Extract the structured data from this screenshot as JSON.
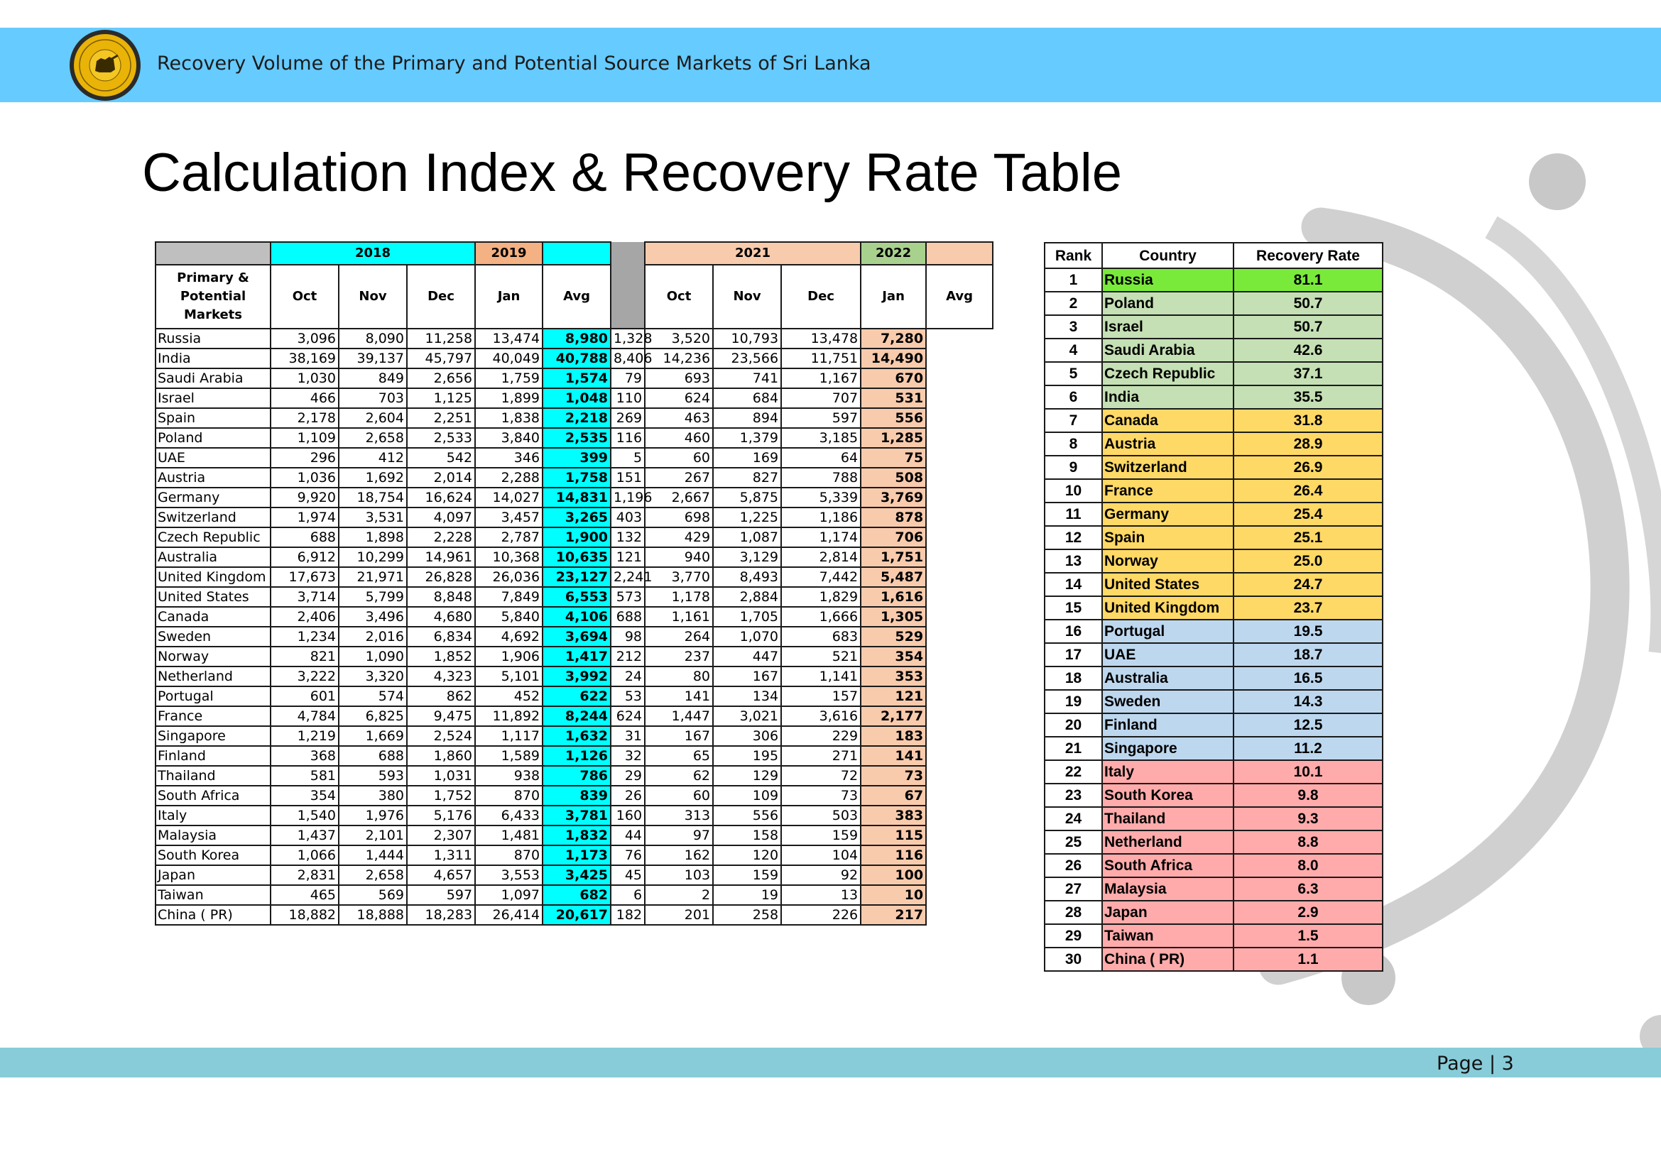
{
  "header": {
    "title": "Recovery Volume of the Primary and Potential Source Markets of Sri Lanka"
  },
  "page_title": "Calculation Index & Recovery Rate Table",
  "footer": {
    "page_label": "Page | 3"
  },
  "colors": {
    "header_band": "#66cbff",
    "footer_band": "#88ccd9",
    "avg_2019": "#00ffff",
    "avg_2022": "#f8cbad",
    "tier_top": "#7aea3a",
    "tier_high": "#c5e0b4",
    "tier_mid": "#ffd966",
    "tier_low": "#bdd7ee",
    "tier_bottom": "#ffabab"
  },
  "main_table": {
    "years": [
      "2018",
      "2019",
      "2021",
      "2022"
    ],
    "market_header": "Primary & Potential Markets",
    "months": [
      "Oct",
      "Nov",
      "Dec",
      "Jan",
      "Avg"
    ],
    "rows": [
      {
        "name": "Russia",
        "a": [
          "3,096",
          "8,090",
          "11,258",
          "13,474",
          "8,980"
        ],
        "b": [
          "1,328",
          "3,520",
          "10,793",
          "13,478",
          "7,280"
        ]
      },
      {
        "name": "India",
        "a": [
          "38,169",
          "39,137",
          "45,797",
          "40,049",
          "40,788"
        ],
        "b": [
          "8,406",
          "14,236",
          "23,566",
          "11,751",
          "14,490"
        ]
      },
      {
        "name": "Saudi Arabia",
        "a": [
          "1,030",
          "849",
          "2,656",
          "1,759",
          "1,574"
        ],
        "b": [
          "79",
          "693",
          "741",
          "1,167",
          "670"
        ]
      },
      {
        "name": "Israel",
        "a": [
          "466",
          "703",
          "1,125",
          "1,899",
          "1,048"
        ],
        "b": [
          "110",
          "624",
          "684",
          "707",
          "531"
        ]
      },
      {
        "name": "Spain",
        "a": [
          "2,178",
          "2,604",
          "2,251",
          "1,838",
          "2,218"
        ],
        "b": [
          "269",
          "463",
          "894",
          "597",
          "556"
        ]
      },
      {
        "name": "Poland",
        "a": [
          "1,109",
          "2,658",
          "2,533",
          "3,840",
          "2,535"
        ],
        "b": [
          "116",
          "460",
          "1,379",
          "3,185",
          "1,285"
        ]
      },
      {
        "name": "UAE",
        "a": [
          "296",
          "412",
          "542",
          "346",
          "399"
        ],
        "b": [
          "5",
          "60",
          "169",
          "64",
          "75"
        ]
      },
      {
        "name": "Austria",
        "a": [
          "1,036",
          "1,692",
          "2,014",
          "2,288",
          "1,758"
        ],
        "b": [
          "151",
          "267",
          "827",
          "788",
          "508"
        ]
      },
      {
        "name": "Germany",
        "a": [
          "9,920",
          "18,754",
          "16,624",
          "14,027",
          "14,831"
        ],
        "b": [
          "1,196",
          "2,667",
          "5,875",
          "5,339",
          "3,769"
        ]
      },
      {
        "name": "Switzerland",
        "a": [
          "1,974",
          "3,531",
          "4,097",
          "3,457",
          "3,265"
        ],
        "b": [
          "403",
          "698",
          "1,225",
          "1,186",
          "878"
        ]
      },
      {
        "name": "Czech Republic",
        "a": [
          "688",
          "1,898",
          "2,228",
          "2,787",
          "1,900"
        ],
        "b": [
          "132",
          "429",
          "1,087",
          "1,174",
          "706"
        ]
      },
      {
        "name": "Australia",
        "a": [
          "6,912",
          "10,299",
          "14,961",
          "10,368",
          "10,635"
        ],
        "b": [
          "121",
          "940",
          "3,129",
          "2,814",
          "1,751"
        ]
      },
      {
        "name": "United Kingdom",
        "a": [
          "17,673",
          "21,971",
          "26,828",
          "26,036",
          "23,127"
        ],
        "b": [
          "2,241",
          "3,770",
          "8,493",
          "7,442",
          "5,487"
        ]
      },
      {
        "name": "United States",
        "a": [
          "3,714",
          "5,799",
          "8,848",
          "7,849",
          "6,553"
        ],
        "b": [
          "573",
          "1,178",
          "2,884",
          "1,829",
          "1,616"
        ]
      },
      {
        "name": "Canada",
        "a": [
          "2,406",
          "3,496",
          "4,680",
          "5,840",
          "4,106"
        ],
        "b": [
          "688",
          "1,161",
          "1,705",
          "1,666",
          "1,305"
        ]
      },
      {
        "name": "Sweden",
        "a": [
          "1,234",
          "2,016",
          "6,834",
          "4,692",
          "3,694"
        ],
        "b": [
          "98",
          "264",
          "1,070",
          "683",
          "529"
        ]
      },
      {
        "name": "Norway",
        "a": [
          "821",
          "1,090",
          "1,852",
          "1,906",
          "1,417"
        ],
        "b": [
          "212",
          "237",
          "447",
          "521",
          "354"
        ]
      },
      {
        "name": "Netherland",
        "a": [
          "3,222",
          "3,320",
          "4,323",
          "5,101",
          "3,992"
        ],
        "b": [
          "24",
          "80",
          "167",
          "1,141",
          "353"
        ]
      },
      {
        "name": "Portugal",
        "a": [
          "601",
          "574",
          "862",
          "452",
          "622"
        ],
        "b": [
          "53",
          "141",
          "134",
          "157",
          "121"
        ]
      },
      {
        "name": "France",
        "a": [
          "4,784",
          "6,825",
          "9,475",
          "11,892",
          "8,244"
        ],
        "b": [
          "624",
          "1,447",
          "3,021",
          "3,616",
          "2,177"
        ]
      },
      {
        "name": "Singapore",
        "a": [
          "1,219",
          "1,669",
          "2,524",
          "1,117",
          "1,632"
        ],
        "b": [
          "31",
          "167",
          "306",
          "229",
          "183"
        ]
      },
      {
        "name": "Finland",
        "a": [
          "368",
          "688",
          "1,860",
          "1,589",
          "1,126"
        ],
        "b": [
          "32",
          "65",
          "195",
          "271",
          "141"
        ]
      },
      {
        "name": "Thailand",
        "a": [
          "581",
          "593",
          "1,031",
          "938",
          "786"
        ],
        "b": [
          "29",
          "62",
          "129",
          "72",
          "73"
        ]
      },
      {
        "name": "South Africa",
        "a": [
          "354",
          "380",
          "1,752",
          "870",
          "839"
        ],
        "b": [
          "26",
          "60",
          "109",
          "73",
          "67"
        ]
      },
      {
        "name": "Italy",
        "a": [
          "1,540",
          "1,976",
          "5,176",
          "6,433",
          "3,781"
        ],
        "b": [
          "160",
          "313",
          "556",
          "503",
          "383"
        ]
      },
      {
        "name": "Malaysia",
        "a": [
          "1,437",
          "2,101",
          "2,307",
          "1,481",
          "1,832"
        ],
        "b": [
          "44",
          "97",
          "158",
          "159",
          "115"
        ]
      },
      {
        "name": "South Korea",
        "a": [
          "1,066",
          "1,444",
          "1,311",
          "870",
          "1,173"
        ],
        "b": [
          "76",
          "162",
          "120",
          "104",
          "116"
        ]
      },
      {
        "name": "Japan",
        "a": [
          "2,831",
          "2,658",
          "4,657",
          "3,553",
          "3,425"
        ],
        "b": [
          "45",
          "103",
          "159",
          "92",
          "100"
        ]
      },
      {
        "name": "Taiwan",
        "a": [
          "465",
          "569",
          "597",
          "1,097",
          "682"
        ],
        "b": [
          "6",
          "2",
          "19",
          "13",
          "10"
        ]
      },
      {
        "name": "China ( PR)",
        "a": [
          "18,882",
          "18,888",
          "18,283",
          "26,414",
          "20,617"
        ],
        "b": [
          "182",
          "201",
          "258",
          "226",
          "217"
        ]
      }
    ]
  },
  "rank_table": {
    "headers": [
      "Rank",
      "Country",
      "Recovery Rate"
    ],
    "rows": [
      {
        "rank": "1",
        "country": "Russia",
        "rate": "81.1",
        "tier": "top"
      },
      {
        "rank": "2",
        "country": "Poland",
        "rate": "50.7",
        "tier": "high"
      },
      {
        "rank": "3",
        "country": "Israel",
        "rate": "50.7",
        "tier": "high"
      },
      {
        "rank": "4",
        "country": "Saudi Arabia",
        "rate": "42.6",
        "tier": "high"
      },
      {
        "rank": "5",
        "country": "Czech Republic",
        "rate": "37.1",
        "tier": "high"
      },
      {
        "rank": "6",
        "country": "India",
        "rate": "35.5",
        "tier": "high"
      },
      {
        "rank": "7",
        "country": "Canada",
        "rate": "31.8",
        "tier": "mid"
      },
      {
        "rank": "8",
        "country": "Austria",
        "rate": "28.9",
        "tier": "mid"
      },
      {
        "rank": "9",
        "country": "Switzerland",
        "rate": "26.9",
        "tier": "mid"
      },
      {
        "rank": "10",
        "country": "France",
        "rate": "26.4",
        "tier": "mid"
      },
      {
        "rank": "11",
        "country": "Germany",
        "rate": "25.4",
        "tier": "mid"
      },
      {
        "rank": "12",
        "country": "Spain",
        "rate": "25.1",
        "tier": "mid"
      },
      {
        "rank": "13",
        "country": "Norway",
        "rate": "25.0",
        "tier": "mid"
      },
      {
        "rank": "14",
        "country": "United States",
        "rate": "24.7",
        "tier": "mid"
      },
      {
        "rank": "15",
        "country": "United Kingdom",
        "rate": "23.7",
        "tier": "mid"
      },
      {
        "rank": "16",
        "country": "Portugal",
        "rate": "19.5",
        "tier": "low"
      },
      {
        "rank": "17",
        "country": "UAE",
        "rate": "18.7",
        "tier": "low"
      },
      {
        "rank": "18",
        "country": "Australia",
        "rate": "16.5",
        "tier": "low"
      },
      {
        "rank": "19",
        "country": "Sweden",
        "rate": "14.3",
        "tier": "low"
      },
      {
        "rank": "20",
        "country": "Finland",
        "rate": "12.5",
        "tier": "low"
      },
      {
        "rank": "21",
        "country": "Singapore",
        "rate": "11.2",
        "tier": "low"
      },
      {
        "rank": "22",
        "country": "Italy",
        "rate": "10.1",
        "tier": "bottom"
      },
      {
        "rank": "23",
        "country": "South Korea",
        "rate": "9.8",
        "tier": "bottom"
      },
      {
        "rank": "24",
        "country": "Thailand",
        "rate": "9.3",
        "tier": "bottom"
      },
      {
        "rank": "25",
        "country": "Netherland",
        "rate": "8.8",
        "tier": "bottom"
      },
      {
        "rank": "26",
        "country": "South Africa",
        "rate": "8.0",
        "tier": "bottom"
      },
      {
        "rank": "27",
        "country": "Malaysia",
        "rate": "6.3",
        "tier": "bottom"
      },
      {
        "rank": "28",
        "country": "Japan",
        "rate": "2.9",
        "tier": "bottom"
      },
      {
        "rank": "29",
        "country": "Taiwan",
        "rate": "1.5",
        "tier": "bottom"
      },
      {
        "rank": "30",
        "country": "China ( PR)",
        "rate": "1.1",
        "tier": "bottom"
      }
    ]
  }
}
